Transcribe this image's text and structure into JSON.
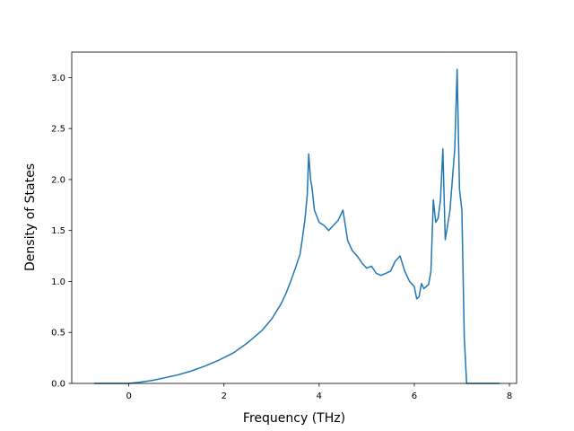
{
  "chart_data": {
    "type": "line",
    "xlabel": "Frequency (THz)",
    "ylabel": "Density of States",
    "xlim": [
      -1.2,
      8.15
    ],
    "ylim": [
      0,
      3.25
    ],
    "xticks": [
      0,
      2,
      4,
      6,
      8
    ],
    "yticks": [
      0.0,
      0.5,
      1.0,
      1.5,
      2.0,
      2.5,
      3.0
    ],
    "xtick_labels": [
      "0",
      "2",
      "4",
      "6",
      "8"
    ],
    "ytick_labels": [
      "0.0",
      "0.5",
      "1.0",
      "1.5",
      "2.0",
      "2.5",
      "3.0"
    ],
    "grid": false,
    "series": [
      {
        "color": "#1f77b4",
        "x": [
          -0.72,
          -0.3,
          0.0,
          0.2,
          0.5,
          0.8,
          1.0,
          1.3,
          1.6,
          1.9,
          2.2,
          2.5,
          2.8,
          3.0,
          3.2,
          3.3,
          3.4,
          3.5,
          3.6,
          3.65,
          3.7,
          3.75,
          3.78,
          3.82,
          3.85,
          3.9,
          4.0,
          4.1,
          4.2,
          4.3,
          4.4,
          4.5,
          4.55,
          4.6,
          4.7,
          4.8,
          4.9,
          5.0,
          5.1,
          5.2,
          5.3,
          5.4,
          5.5,
          5.6,
          5.7,
          5.8,
          5.9,
          6.0,
          6.05,
          6.1,
          6.15,
          6.2,
          6.3,
          6.35,
          6.4,
          6.45,
          6.5,
          6.55,
          6.6,
          6.65,
          6.7,
          6.75,
          6.8,
          6.85,
          6.9,
          6.95,
          7.0,
          7.05,
          7.1,
          7.3,
          7.5,
          7.78
        ],
        "y": [
          0.0,
          0.0,
          0.0,
          0.01,
          0.03,
          0.06,
          0.08,
          0.12,
          0.17,
          0.23,
          0.3,
          0.4,
          0.52,
          0.63,
          0.78,
          0.88,
          1.0,
          1.13,
          1.27,
          1.43,
          1.6,
          1.85,
          2.25,
          2.0,
          1.92,
          1.7,
          1.58,
          1.55,
          1.5,
          1.55,
          1.6,
          1.7,
          1.55,
          1.4,
          1.3,
          1.25,
          1.18,
          1.13,
          1.15,
          1.08,
          1.06,
          1.08,
          1.1,
          1.2,
          1.25,
          1.1,
          1.0,
          0.95,
          0.83,
          0.85,
          0.98,
          0.93,
          0.97,
          1.1,
          1.8,
          1.58,
          1.62,
          1.8,
          2.3,
          1.41,
          1.55,
          1.7,
          2.0,
          2.3,
          3.08,
          1.9,
          1.7,
          0.45,
          0.0,
          0.0,
          0.0,
          0.0
        ]
      }
    ]
  }
}
